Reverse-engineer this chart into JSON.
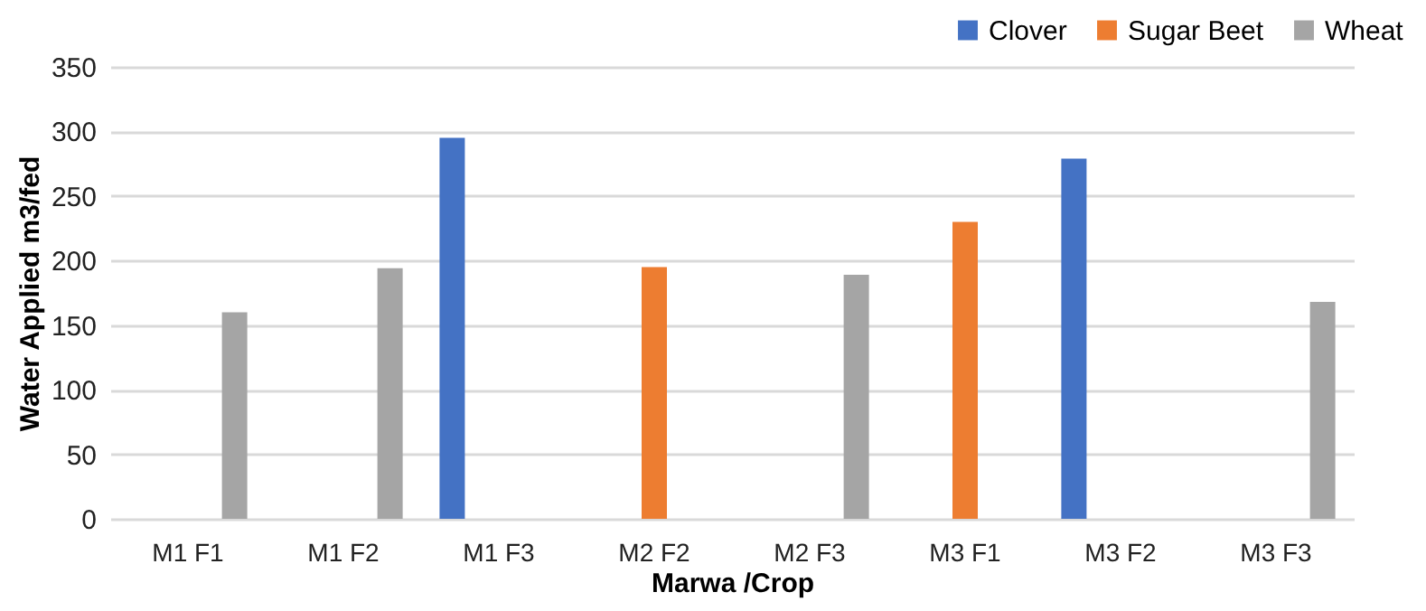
{
  "chart_data": {
    "type": "bar",
    "xlabel": "Marwa /Crop",
    "ylabel": "Water Applied m3/fed",
    "categories": [
      "M1  F1",
      "M1  F2",
      "M1  F3",
      "M2 F2",
      "M2 F3",
      "M3  F1",
      "M3  F2",
      "M3  F3"
    ],
    "series": [
      {
        "name": "Clover",
        "color": "#4472c4",
        "values": [
          null,
          null,
          295,
          null,
          null,
          null,
          279,
          null
        ]
      },
      {
        "name": "Sugar Beet",
        "color": "#ed7d31",
        "values": [
          null,
          null,
          null,
          195,
          null,
          230,
          null,
          null
        ]
      },
      {
        "name": "Wheat",
        "color": "#a5a5a5",
        "values": [
          160,
          194,
          null,
          null,
          189,
          null,
          null,
          168
        ]
      }
    ],
    "ylim": [
      0,
      350
    ],
    "yticks": [
      0,
      50,
      100,
      150,
      200,
      250,
      300,
      350
    ],
    "grid": "y",
    "legend": "top right"
  }
}
